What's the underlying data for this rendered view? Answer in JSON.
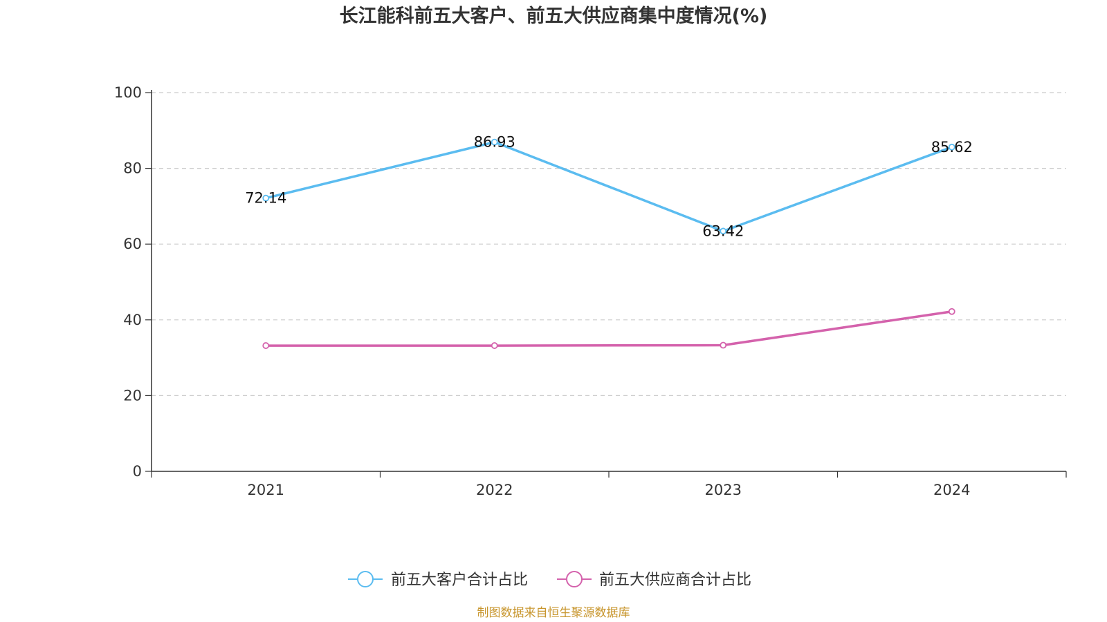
{
  "chart_data": {
    "type": "line",
    "title": "长江能科前五大客户、前五大供应商集中度情况(%)",
    "categories": [
      "2021",
      "2022",
      "2023",
      "2024"
    ],
    "ylim": [
      0,
      100
    ],
    "yticks": [
      0,
      20,
      40,
      60,
      80,
      100
    ],
    "grid": true,
    "legend_position": "bottom",
    "series": [
      {
        "name": "前五大客户合计占比",
        "values": [
          72.14,
          86.93,
          63.42,
          85.62
        ],
        "color": "#5bbcf0",
        "labels": [
          "72.14",
          "86.93",
          "63.42",
          "85.62"
        ]
      },
      {
        "name": "前五大供应商合计占比",
        "values": [
          33.2,
          33.2,
          33.3,
          42.2
        ],
        "color": "#d462ac"
      }
    ],
    "source": "制图数据来自恒生聚源数据库"
  }
}
